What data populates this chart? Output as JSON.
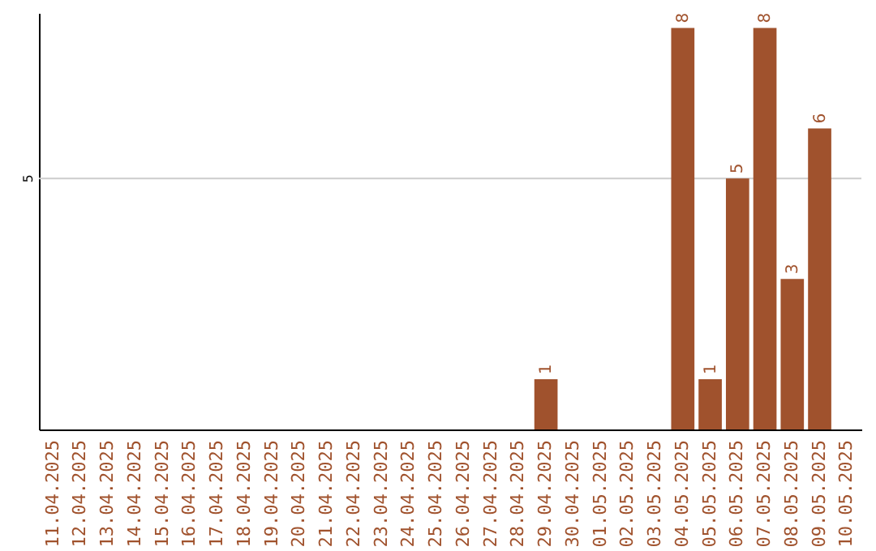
{
  "chart_data": {
    "type": "bar",
    "categories": [
      "11.04.2025",
      "12.04.2025",
      "13.04.2025",
      "14.04.2025",
      "15.04.2025",
      "16.04.2025",
      "17.04.2025",
      "18.04.2025",
      "19.04.2025",
      "20.04.2025",
      "21.04.2025",
      "22.04.2025",
      "23.04.2025",
      "24.04.2025",
      "25.04.2025",
      "26.04.2025",
      "27.04.2025",
      "28.04.2025",
      "29.04.2025",
      "30.04.2025",
      "01.05.2025",
      "02.05.2025",
      "03.05.2025",
      "04.05.2025",
      "05.05.2025",
      "06.05.2025",
      "07.05.2025",
      "08.05.2025",
      "09.05.2025",
      "10.05.2025"
    ],
    "values": [
      null,
      null,
      null,
      null,
      null,
      null,
      null,
      null,
      null,
      null,
      null,
      null,
      null,
      null,
      null,
      null,
      null,
      null,
      1,
      null,
      null,
      null,
      null,
      8,
      1,
      5,
      8,
      3,
      6,
      null
    ],
    "data_labels": true,
    "color": "#a0522d",
    "ylim": [
      0,
      8.3
    ],
    "ref_lines": [
      {
        "axis": "y",
        "value": 5,
        "label": "5",
        "color": "#cccccc"
      }
    ]
  }
}
